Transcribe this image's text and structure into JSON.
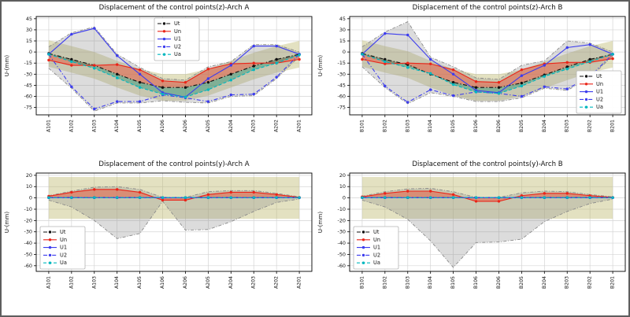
{
  "figure": {
    "background": "#ffffff",
    "border_color": "#5e5e5e"
  },
  "colors": {
    "grid": "#d4d4d4",
    "spine": "#000000",
    "band_fill": "rgba(189,183,107,0.42)",
    "envelope_line": "#8a8a8a",
    "envelope_fill": "rgba(140,140,140,0.30)",
    "un_fill": "rgba(235,80,55,0.48)",
    "ua_fill": "rgba(28,145,115,0.42)"
  },
  "chart_data": [
    {
      "type": "line",
      "title": "Displacement of the control points(z)-Arch A",
      "ylabel": "U-(mm)",
      "categories": [
        "A101",
        "A102",
        "A103",
        "A104",
        "A105",
        "A106",
        "A206",
        "A205",
        "A204",
        "A203",
        "A202",
        "A201"
      ],
      "ylim": [
        -85,
        48
      ],
      "yticks": [
        45,
        30,
        15,
        0,
        -15,
        -30,
        -45,
        -60,
        -75
      ],
      "legend_position": "upper-center",
      "band": {
        "mode": "offset",
        "ref": "Ut",
        "delta": 18
      },
      "envelope": {
        "upper": [
          7,
          26,
          34,
          -3,
          -21,
          -36,
          -38,
          -20,
          -13,
          10,
          10,
          0
        ],
        "lower": [
          -22,
          -49,
          -80,
          -69,
          -69,
          -66,
          -68,
          -69,
          -60,
          -59,
          -36,
          -6
        ]
      },
      "fills": [
        {
          "between": [
            "Ut",
            "Un"
          ],
          "color": "rgba(235,80,55,0.48)"
        },
        {
          "between": [
            "Ut",
            "Ua"
          ],
          "color": "rgba(28,145,115,0.42)"
        }
      ],
      "series": [
        {
          "name": "Ut",
          "color": "#111111",
          "dash": "dashdot",
          "values": [
            -2,
            -10,
            -18,
            -30,
            -41,
            -48,
            -48,
            -41,
            -30,
            -19,
            -10,
            -3
          ]
        },
        {
          "name": "Un",
          "color": "#ea2418",
          "dash": "solid",
          "values": [
            -11,
            -18,
            -18,
            -17,
            -24,
            -39,
            -41,
            -23,
            -16,
            -15,
            -15,
            -10
          ]
        },
        {
          "name": "U1",
          "color": "#3c3cee",
          "dash": "solid",
          "values": [
            -3,
            24,
            32,
            -5,
            -30,
            -55,
            -61,
            -36,
            -18,
            8,
            8,
            -3
          ]
        },
        {
          "name": "U2",
          "color": "#3c3cee",
          "dash": "dashdot",
          "values": [
            -3,
            -47,
            -77,
            -67,
            -67,
            -58,
            -62,
            -67,
            -58,
            -57,
            -34,
            -3
          ]
        },
        {
          "name": "Ua",
          "color": "#00b7bf",
          "dash": "dashed",
          "values": [
            -3,
            -13,
            -22,
            -35,
            -48,
            -57,
            -61,
            -51,
            -38,
            -24,
            -15,
            -4
          ]
        }
      ]
    },
    {
      "type": "line",
      "title": "Displacement of the control points(z)-Arch B",
      "ylabel": "U-(mm)",
      "categories": [
        "B101",
        "B102",
        "B103",
        "B104",
        "B105",
        "B106",
        "B206",
        "B205",
        "B204",
        "B203",
        "B202",
        "B201"
      ],
      "ylim": [
        -85,
        48
      ],
      "yticks": [
        45,
        30,
        15,
        0,
        -15,
        -30,
        -45,
        -60,
        -75
      ],
      "legend_position": "lower-right",
      "band": {
        "mode": "offset",
        "ref": "Ut",
        "delta": 18
      },
      "envelope": {
        "upper": [
          7,
          27,
          41,
          -7,
          -20,
          -35,
          -37,
          -18,
          -12,
          15,
          12,
          0
        ],
        "lower": [
          -20,
          -48,
          -70,
          -55,
          -60,
          -67,
          -67,
          -62,
          -49,
          -52,
          -35,
          -5
        ]
      },
      "fills": [
        {
          "between": [
            "Ut",
            "Un"
          ],
          "color": "rgba(235,80,55,0.48)"
        },
        {
          "between": [
            "Ut",
            "Ua"
          ],
          "color": "rgba(28,145,115,0.42)"
        }
      ],
      "series": [
        {
          "name": "Ut",
          "color": "#111111",
          "dash": "dashdot",
          "values": [
            -2,
            -10,
            -17,
            -30,
            -41,
            -48,
            -48,
            -42,
            -31,
            -20,
            -10,
            -3
          ]
        },
        {
          "name": "Un",
          "color": "#ea2418",
          "dash": "solid",
          "values": [
            -10,
            -16,
            -15,
            -16,
            -24,
            -40,
            -41,
            -24,
            -16,
            -14,
            -14,
            -9
          ]
        },
        {
          "name": "U1",
          "color": "#3c3cee",
          "dash": "solid",
          "values": [
            -3,
            25,
            23,
            -10,
            -30,
            -52,
            -55,
            -32,
            -18,
            6,
            10,
            -3
          ]
        },
        {
          "name": "U2",
          "color": "#3c3cee",
          "dash": "dashdot",
          "values": [
            -3,
            -46,
            -68,
            -51,
            -59,
            -54,
            -56,
            -60,
            -47,
            -50,
            -33,
            -3
          ]
        },
        {
          "name": "Ua",
          "color": "#00b7bf",
          "dash": "dashed",
          "values": [
            -3,
            -13,
            -21,
            -29,
            -44,
            -54,
            -56,
            -46,
            -33,
            -23,
            -13,
            -3
          ]
        }
      ]
    },
    {
      "type": "line",
      "title": "Displacement of the control points(y)-Arch A",
      "ylabel": "U-(mm)",
      "categories": [
        "A101",
        "A102",
        "A103",
        "A104",
        "A105",
        "A106",
        "A206",
        "A205",
        "A204",
        "A203",
        "A202",
        "A201"
      ],
      "ylim": [
        -65,
        22
      ],
      "yticks": [
        20,
        10,
        0,
        -10,
        -20,
        -30,
        -40,
        -50,
        -60
      ],
      "legend_position": "lower-left",
      "band": {
        "mode": "constant",
        "upper": 18.5,
        "lower": -18.5
      },
      "envelope": {
        "upper": [
          2,
          6,
          9.5,
          10,
          7.5,
          0.5,
          0.5,
          5.5,
          6.5,
          6.5,
          4,
          1
        ],
        "lower": [
          -2,
          -8,
          -20,
          -36,
          -31.5,
          -3,
          -28.5,
          -28,
          -21,
          -12,
          -4,
          -1
        ]
      },
      "fills": [
        {
          "between": [
            "Ut",
            "Un"
          ],
          "color": "rgba(235,80,55,0.48)"
        },
        {
          "between": [
            "Ut",
            "Ua"
          ],
          "color": "rgba(28,145,115,0.42)"
        }
      ],
      "series": [
        {
          "name": "Ut",
          "color": "#111111",
          "dash": "dashdot",
          "values": [
            0.3,
            0.3,
            0.3,
            0.3,
            0.3,
            0.3,
            0.3,
            0.3,
            0.3,
            0.3,
            0.3,
            0.3
          ]
        },
        {
          "name": "Un",
          "color": "#ea2418",
          "dash": "solid",
          "values": [
            1.5,
            5,
            7.5,
            7.5,
            5,
            -2,
            -2,
            3,
            5,
            5,
            3,
            0.5
          ]
        },
        {
          "name": "U1",
          "color": "#3c3cee",
          "dash": "solid",
          "values": [
            0.2,
            0.2,
            0.2,
            0.2,
            0.2,
            0.2,
            0.2,
            0.2,
            0.2,
            0.2,
            0.2,
            0.2
          ]
        },
        {
          "name": "U2",
          "color": "#3c3cee",
          "dash": "dashdot",
          "values": [
            0.2,
            0.2,
            0.2,
            0.2,
            0.2,
            0.2,
            0.2,
            0.2,
            0.2,
            0.2,
            0.2,
            0.2
          ]
        },
        {
          "name": "Ua",
          "color": "#00b7bf",
          "dash": "dashed",
          "values": [
            0.3,
            0.3,
            0.3,
            0.3,
            0.3,
            0.3,
            0.3,
            0.3,
            0.3,
            0.3,
            0.3,
            0.3
          ]
        }
      ]
    },
    {
      "type": "line",
      "title": "Displacement of the control points(y)-Arch B",
      "ylabel": "U-(mm)",
      "categories": [
        "B101",
        "B102",
        "B103",
        "B104",
        "B105",
        "B106",
        "B206",
        "B205",
        "B204",
        "B203",
        "B202",
        "B201"
      ],
      "ylim": [
        -65,
        22
      ],
      "yticks": [
        20,
        10,
        0,
        -10,
        -20,
        -30,
        -40,
        -50,
        -60
      ],
      "legend_position": "lower-left",
      "band": {
        "mode": "constant",
        "upper": 18.5,
        "lower": -18.5
      },
      "envelope": {
        "upper": [
          1.5,
          5.5,
          8,
          8.5,
          5.5,
          0.5,
          0.5,
          4.5,
          6,
          5.5,
          3,
          1
        ],
        "lower": [
          -2,
          -8,
          -19,
          -38,
          -61.5,
          -39.5,
          -39,
          -36.5,
          -21,
          -12,
          -5,
          -1
        ]
      },
      "fills": [
        {
          "between": [
            "Ut",
            "Un"
          ],
          "color": "rgba(235,80,55,0.48)"
        },
        {
          "between": [
            "Ut",
            "Ua"
          ],
          "color": "rgba(28,145,115,0.42)"
        }
      ],
      "series": [
        {
          "name": "Ut",
          "color": "#111111",
          "dash": "dashdot",
          "values": [
            0.3,
            0.3,
            0.3,
            0.3,
            0.3,
            0.3,
            0.3,
            0.3,
            0.3,
            0.3,
            0.3,
            0.3
          ]
        },
        {
          "name": "Un",
          "color": "#ea2418",
          "dash": "solid",
          "values": [
            1,
            4,
            6,
            6,
            3,
            -3,
            -3,
            2,
            4,
            4,
            2,
            0.5
          ]
        },
        {
          "name": "U1",
          "color": "#3c3cee",
          "dash": "solid",
          "values": [
            0.2,
            0.2,
            0.2,
            0.2,
            0.2,
            0.2,
            0.2,
            0.2,
            0.2,
            0.2,
            0.2,
            0.2
          ]
        },
        {
          "name": "U2",
          "color": "#3c3cee",
          "dash": "dashdot",
          "values": [
            0.2,
            0.2,
            0.2,
            0.2,
            0.2,
            0.2,
            0.2,
            0.2,
            0.2,
            0.2,
            0.2,
            0.2
          ]
        },
        {
          "name": "Ua",
          "color": "#00b7bf",
          "dash": "dashed",
          "values": [
            0.3,
            0.3,
            0.3,
            0.3,
            0.3,
            0.3,
            0.3,
            0.3,
            0.3,
            0.3,
            0.3,
            0.3
          ]
        }
      ]
    }
  ]
}
